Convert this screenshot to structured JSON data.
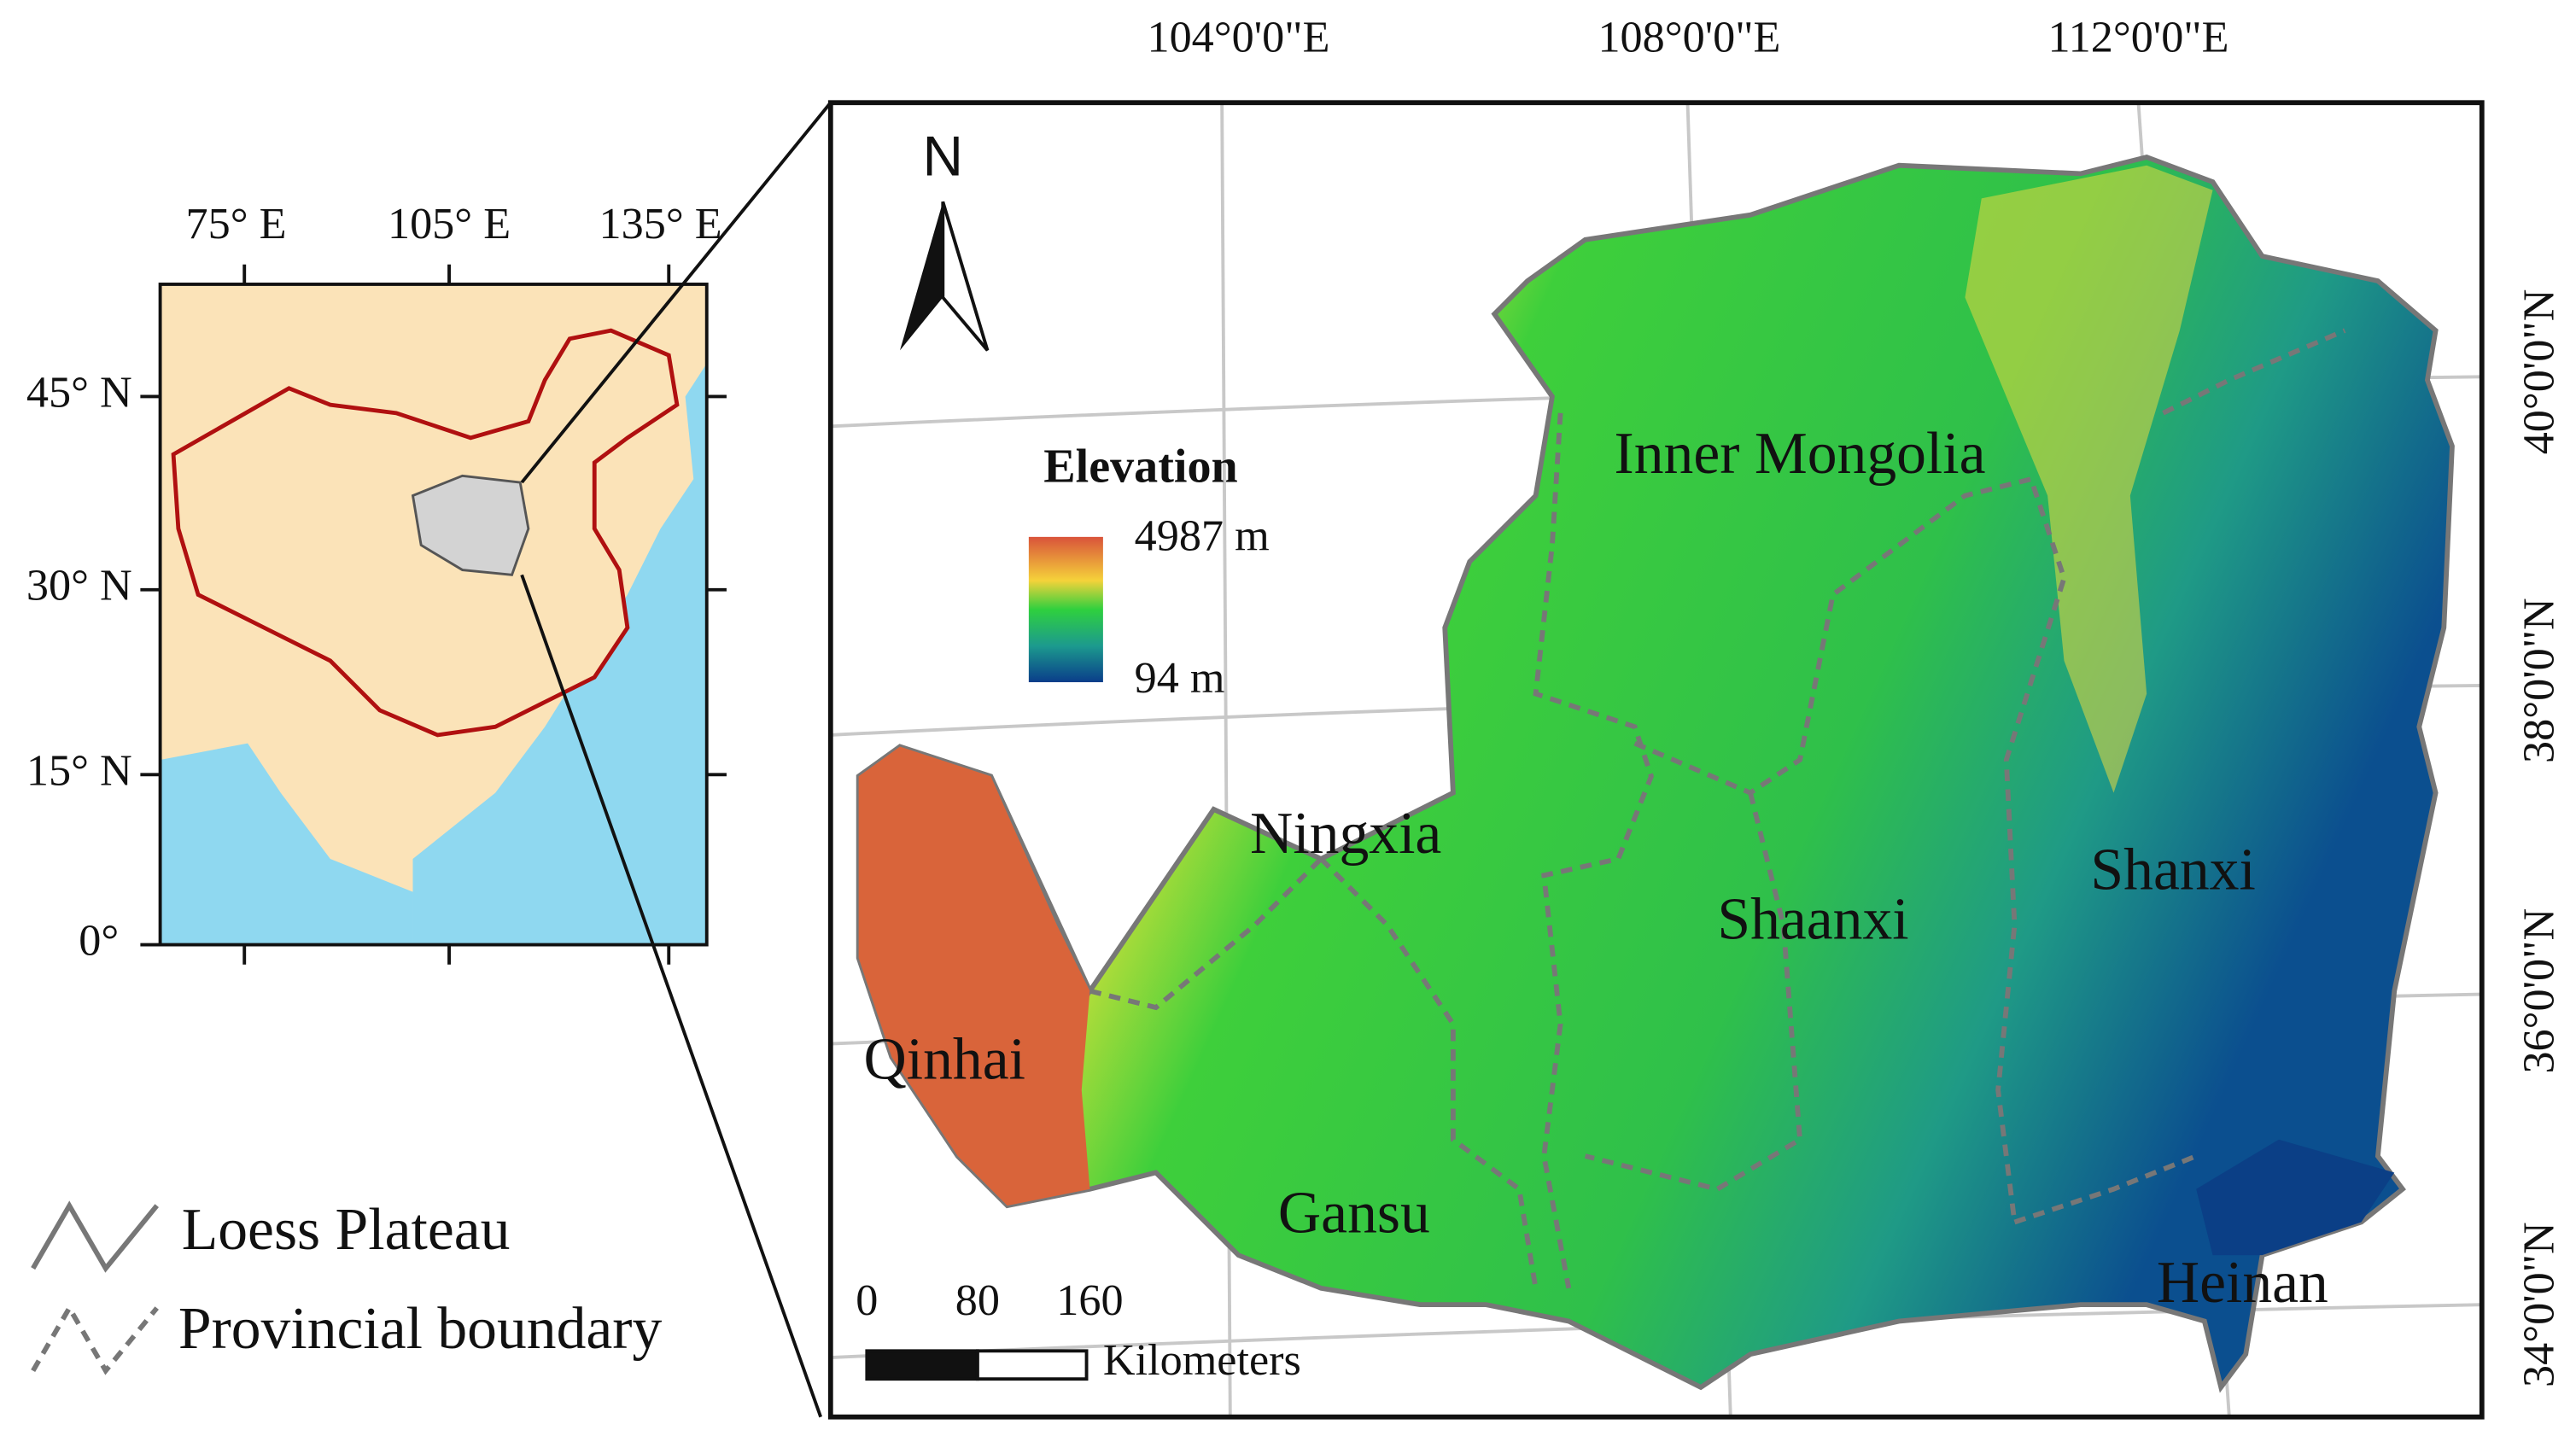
{
  "inset": {
    "x_labels": [
      "75° E",
      "105° E",
      "135° E"
    ],
    "y_labels": [
      "45° N",
      "30° N",
      "15° N",
      "0°"
    ]
  },
  "main": {
    "x_labels": [
      "104°0'0\"E",
      "108°0'0\"E",
      "112°0'0\"E"
    ],
    "y_labels": [
      "40°0'0\"N",
      "38°0'0\"N",
      "36°0'0\"N",
      "34°0'0\"N"
    ],
    "north": "N",
    "regions": [
      "Inner Mongolia",
      "Ningxia",
      "Shaanxi",
      "Shanxi",
      "Qinhai",
      "Gansu",
      "Heinan"
    ]
  },
  "elevation_legend": {
    "title": "Elevation",
    "max": "4987 m",
    "min": "94 m"
  },
  "scale_bar": {
    "labels": [
      "0",
      "80",
      "160"
    ],
    "unit": "Kilometers"
  },
  "legend": {
    "items": [
      "Loess Plateau",
      "Provincial boundary"
    ]
  }
}
